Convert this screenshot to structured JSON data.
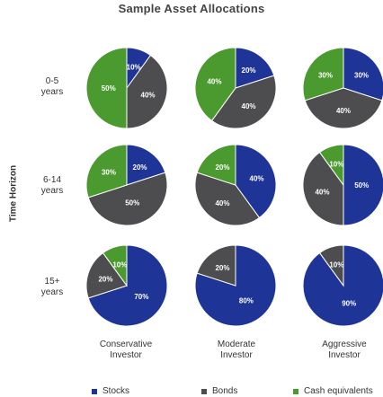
{
  "chart_data": {
    "type": "pie",
    "title": "Sample Asset Allocations",
    "ylabel": "Time Horizon",
    "rows": [
      "0-5 years",
      "6-14 years",
      "15+ years"
    ],
    "columns": [
      "Conservative Investor",
      "Moderate Investor",
      "Aggressive Investor"
    ],
    "series_names": [
      "Stocks",
      "Bonds",
      "Cash equivalents"
    ],
    "colors": {
      "Stocks": "#1f3497",
      "Bonds": "#4d4d4f",
      "Cash equivalents": "#4b9a2f"
    },
    "legend_position": "bottom",
    "pies": [
      {
        "row": "0-5 years",
        "column": "Conservative Investor",
        "values": [
          10,
          40,
          50
        ]
      },
      {
        "row": "0-5 years",
        "column": "Moderate Investor",
        "values": [
          20,
          40,
          40
        ]
      },
      {
        "row": "0-5 years",
        "column": "Aggressive Investor",
        "values": [
          30,
          40,
          30
        ]
      },
      {
        "row": "6-14 years",
        "column": "Conservative Investor",
        "values": [
          20,
          50,
          30
        ]
      },
      {
        "row": "6-14 years",
        "column": "Moderate Investor",
        "values": [
          40,
          40,
          20
        ]
      },
      {
        "row": "6-14 years",
        "column": "Aggressive Investor",
        "values": [
          50,
          40,
          10
        ]
      },
      {
        "row": "15+ years",
        "column": "Conservative Investor",
        "values": [
          70,
          20,
          10
        ]
      },
      {
        "row": "15+ years",
        "column": "Moderate Investor",
        "values": [
          80,
          20,
          0
        ]
      },
      {
        "row": "15+ years",
        "column": "Aggressive Investor",
        "values": [
          90,
          10,
          0
        ]
      }
    ]
  },
  "labels": {
    "title": "Sample Asset Allocations",
    "yaxis": "Time Horizon",
    "rows": [
      {
        "line1": "0-5",
        "line2": "years"
      },
      {
        "line1": "6-14",
        "line2": "years"
      },
      {
        "line1": "15+",
        "line2": "years"
      }
    ],
    "columns": [
      {
        "line1": "Conservative",
        "line2": "Investor"
      },
      {
        "line1": "Moderate",
        "line2": "Investor"
      },
      {
        "line1": "Aggressive",
        "line2": "Investor"
      }
    ],
    "legend": [
      "Stocks",
      "Bonds",
      "Cash equivalents"
    ]
  }
}
